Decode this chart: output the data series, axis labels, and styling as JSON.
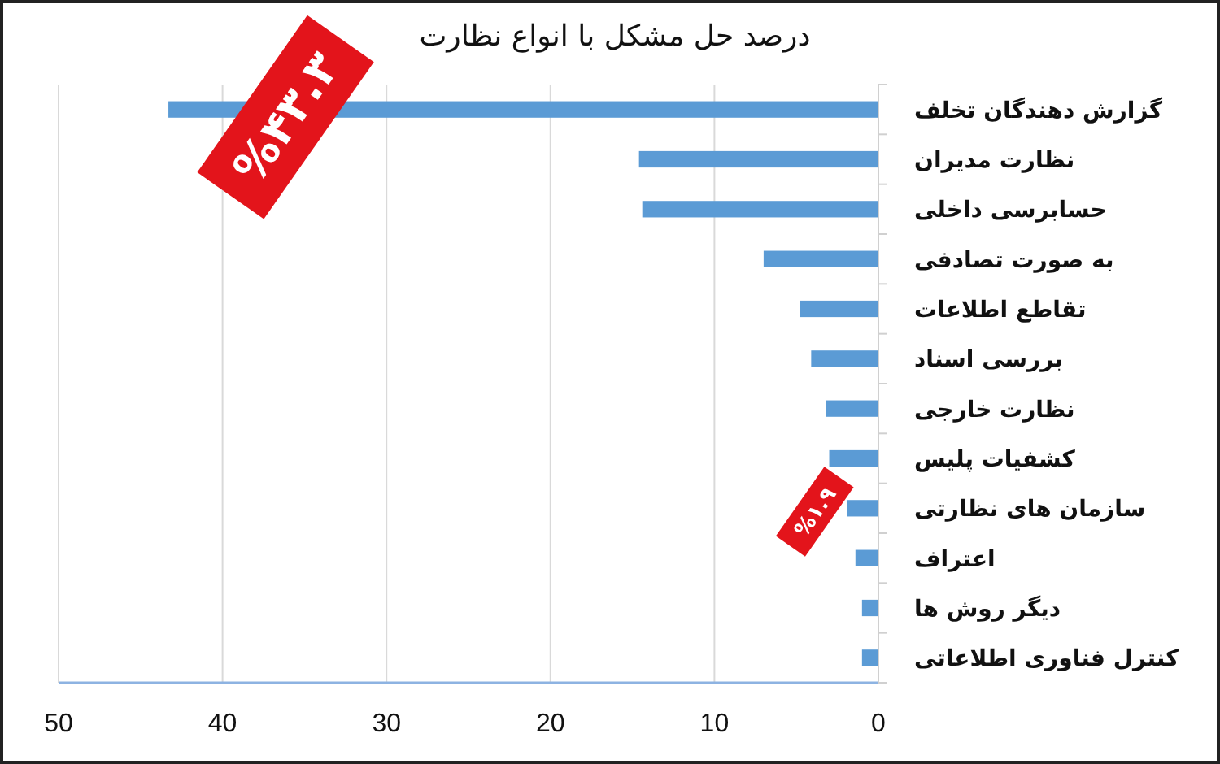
{
  "chart_data": {
    "type": "bar",
    "orientation": "horizontal",
    "title": "درصد حل مشکل با انواع نظارت",
    "categories": [
      "گزارش دهندگان تخلف",
      "نظارت مدیران",
      "حسابرسی داخلی",
      "به صورت تصادفی",
      "تقاطع اطلاعات",
      "بررسی اسناد",
      "نظارت خارجی",
      "کشفیات پلیس",
      "سازمان های نظارتی",
      "اعتراف",
      "دیگر روش ها",
      "کنترل فناوری اطلاعاتی"
    ],
    "values": [
      43.3,
      14.6,
      14.4,
      7.0,
      4.8,
      4.1,
      3.2,
      3.0,
      1.9,
      1.4,
      1.0,
      1.0
    ],
    "color": "#5b9bd5",
    "value_labels": [
      "%۴۳.۳",
      null,
      null,
      null,
      null,
      null,
      null,
      null,
      "%۱.۹",
      null,
      null,
      null
    ],
    "xlim": [
      50,
      0
    ],
    "xticks": [
      50,
      40,
      30,
      20,
      10,
      0
    ],
    "grid": "x"
  }
}
